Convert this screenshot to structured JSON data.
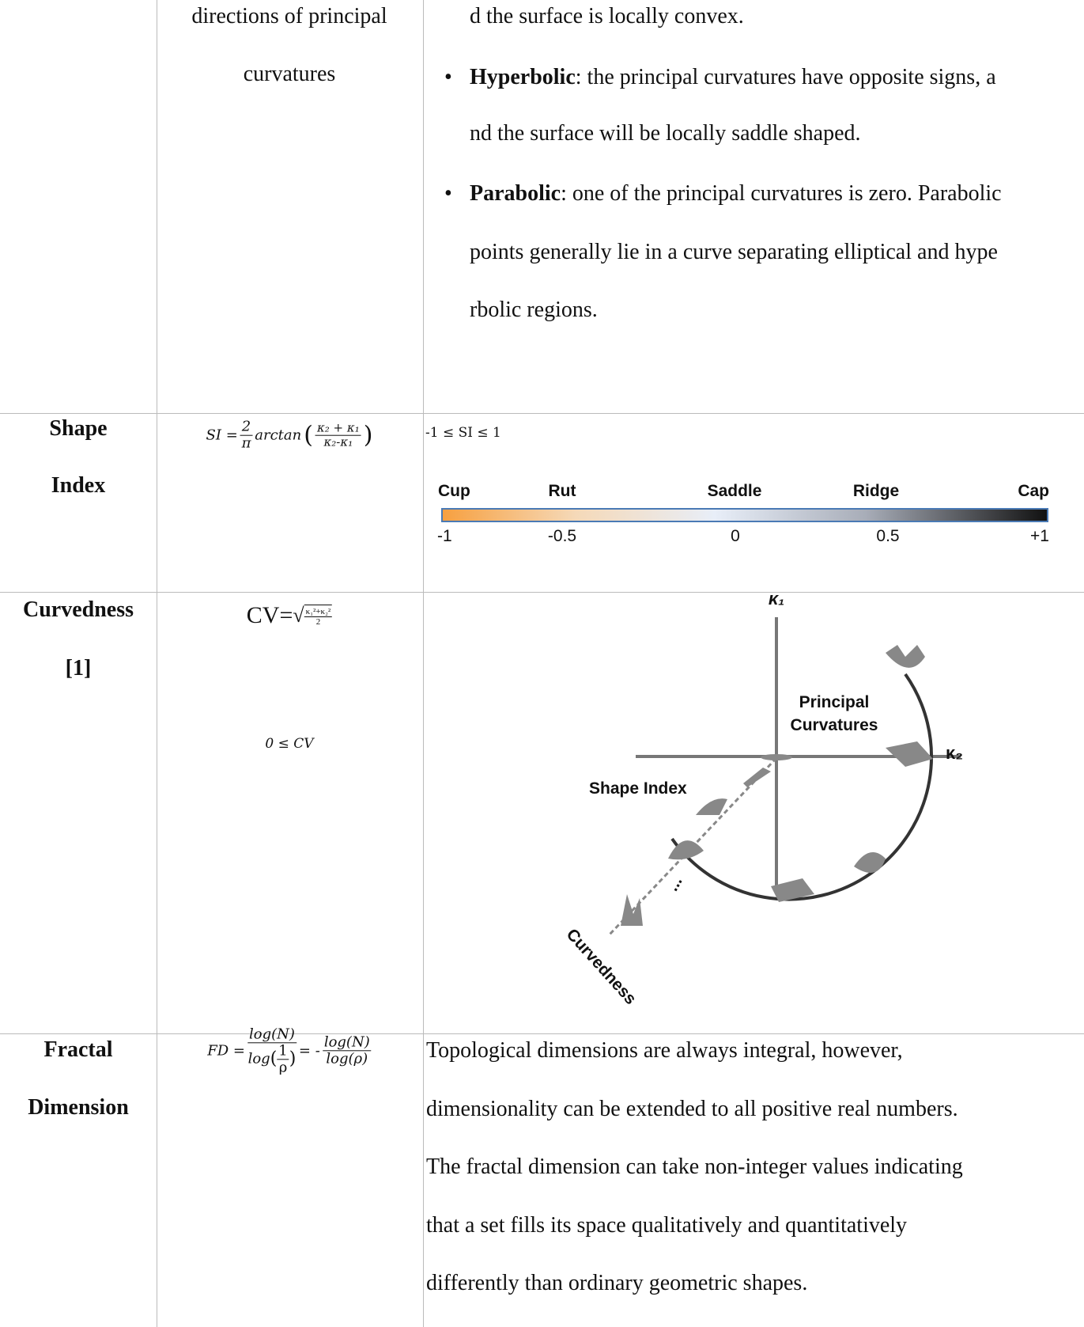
{
  "rows": [
    {
      "definition": [
        "directions of principal",
        "curvatures"
      ],
      "description": {
        "line": "d the surface is locally convex.",
        "bullets": [
          {
            "term": "Hyperbolic",
            "lines": [
              ": the principal curvatures have opposite signs, a",
              "nd the surface will be locally saddle shaped."
            ]
          },
          {
            "term": "Parabolic",
            "lines": [
              ": one of the principal curvatures is zero. Parabolic",
              "points generally lie in a curve separating elliptical and hype",
              "rbolic regions."
            ]
          }
        ]
      }
    },
    {
      "name": [
        "Shape",
        "Index"
      ],
      "formula": {
        "lhs": "SI =",
        "num": "2",
        "den": "π",
        "fn": "arctan",
        "inner_num": "κ₂ + κ₁",
        "inner_den": "κ₂-κ₁"
      },
      "range": "-1 ≤ SI ≤ 1",
      "scale": {
        "labels": [
          "Cup",
          "Rut",
          "Saddle",
          "Ridge",
          "Cap"
        ],
        "ticks": [
          "-1",
          "-0.5",
          "0",
          "0.5",
          "+1"
        ]
      }
    },
    {
      "name": [
        "Curvedness",
        "[1]"
      ],
      "formula": {
        "lhs": "CV=",
        "num": "κ₁²+κ₂²",
        "den": "2"
      },
      "range": "0 ≤ CV",
      "figure": {
        "axis_1": "κ₁",
        "axis_2": "κ₂",
        "principal": [
          "Principal",
          "Curvatures"
        ],
        "shape_index": "Shape Index",
        "curvedness": "Curvedness",
        "ellipsis": "..."
      }
    },
    {
      "name": [
        "Fractal",
        "Dimension"
      ],
      "formula": {
        "lhs": "FD =",
        "num": "log(N)",
        "den_fn": "log",
        "den_num": "1",
        "den_den": "ρ",
        "mid": "= -",
        "num2": "log(N)",
        "den2": "log(ρ)"
      },
      "description": [
        "Topological dimensions are always integral, however,",
        "dimensionality can be extended to all positive real numbers.",
        "The fractal dimension can take non-integer values indicating",
        "that a set fills its space qualitatively and quantitatively",
        "differently than ordinary geometric shapes."
      ]
    }
  ]
}
